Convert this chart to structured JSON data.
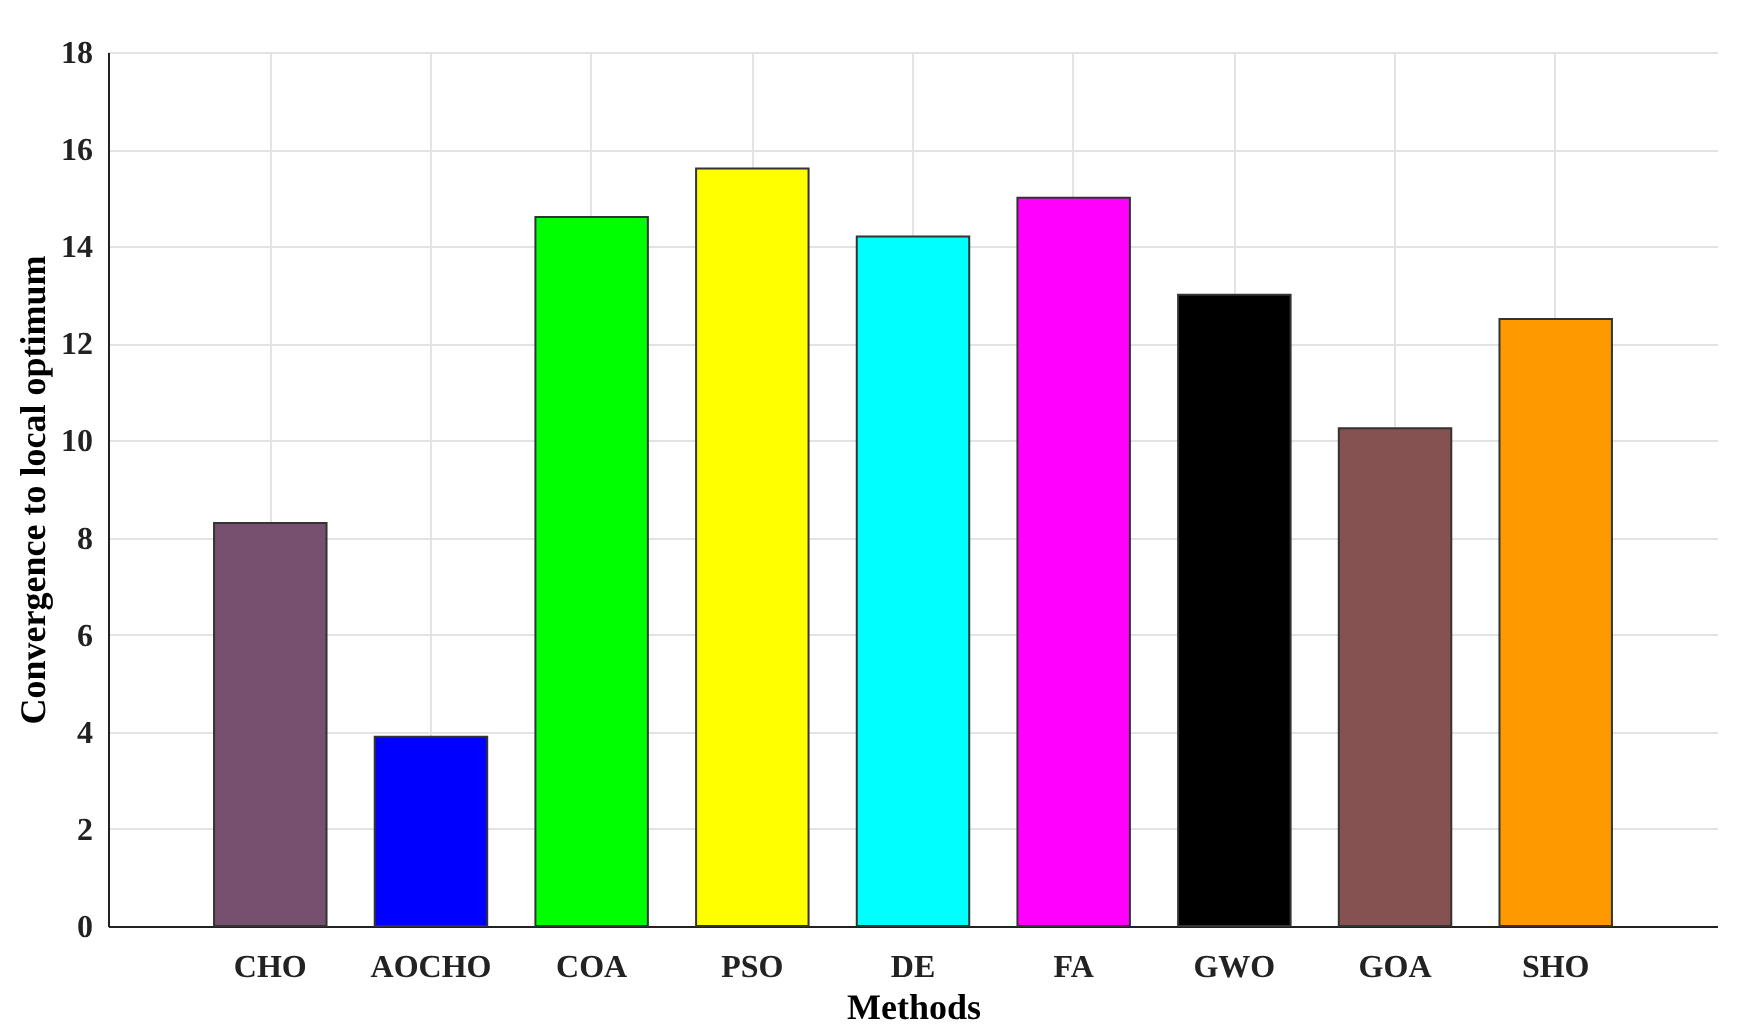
{
  "chart_data": {
    "type": "bar",
    "xlabel": "Methods",
    "ylabel": "Convergence to local optimum",
    "categories": [
      "CHO",
      "AOCHO",
      "COA",
      "PSO",
      "DE",
      "FA",
      "GWO",
      "GOA",
      "SHO"
    ],
    "values": [
      8.3,
      3.9,
      14.6,
      15.6,
      14.2,
      15.0,
      13.0,
      10.25,
      12.5
    ],
    "colors": [
      "#77506f",
      "#0000ff",
      "#00ff00",
      "#ffff00",
      "#00ffff",
      "#ff00ff",
      "#000000",
      "#855251",
      "#ff9900"
    ],
    "ylim": [
      0,
      18
    ],
    "yticks": [
      0,
      2,
      4,
      6,
      8,
      10,
      12,
      14,
      16,
      18
    ],
    "grid": true
  }
}
